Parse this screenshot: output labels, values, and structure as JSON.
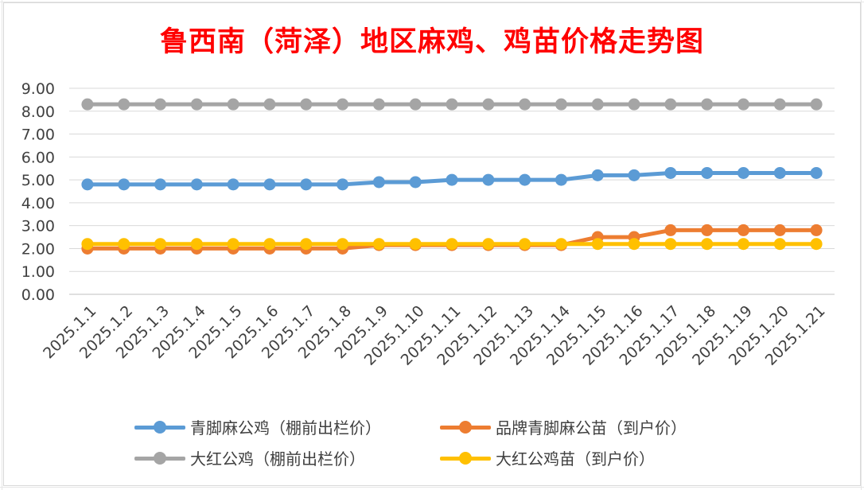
{
  "chart_data": {
    "type": "line",
    "title": "鲁西南（菏泽）地区麻鸡、鸡苗价格走势图",
    "categories": [
      "2025.1.1",
      "2025.1.2",
      "2025.1.3",
      "2025.1.4",
      "2025.1.5",
      "2025.1.6",
      "2025.1.7",
      "2025.1.8",
      "2025.1.9",
      "2025.1.10",
      "2025.1.11",
      "2025.1.12",
      "2025.1.13",
      "2025.1.14",
      "2025.1.15",
      "2025.1.16",
      "2025.1.17",
      "2025.1.18",
      "2025.1.19",
      "2025.1.20",
      "2025.1.21"
    ],
    "ylim": [
      0,
      9
    ],
    "yticks": [
      "0.00",
      "1.00",
      "2.00",
      "3.00",
      "4.00",
      "5.00",
      "6.00",
      "7.00",
      "8.00",
      "9.00"
    ],
    "grid": true,
    "legend_position": "bottom",
    "series": [
      {
        "name": "大红公鸡（棚前出栏价）",
        "color": "#a5a5a5",
        "values": [
          8.3,
          8.3,
          8.3,
          8.3,
          8.3,
          8.3,
          8.3,
          8.3,
          8.3,
          8.3,
          8.3,
          8.3,
          8.3,
          8.3,
          8.3,
          8.3,
          8.3,
          8.3,
          8.3,
          8.3,
          8.3
        ]
      },
      {
        "name": "青脚麻公鸡（棚前出栏价）",
        "color": "#5b9bd5",
        "values": [
          4.8,
          4.8,
          4.8,
          4.8,
          4.8,
          4.8,
          4.8,
          4.8,
          4.9,
          4.9,
          5.0,
          5.0,
          5.0,
          5.0,
          5.2,
          5.2,
          5.3,
          5.3,
          5.3,
          5.3,
          5.3
        ]
      },
      {
        "name": "品牌青脚麻公苗（到户价）",
        "color": "#ed7d31",
        "values": [
          2.0,
          2.0,
          2.0,
          2.0,
          2.0,
          2.0,
          2.0,
          2.0,
          2.15,
          2.15,
          2.15,
          2.15,
          2.15,
          2.15,
          2.5,
          2.5,
          2.8,
          2.8,
          2.8,
          2.8,
          2.8
        ]
      },
      {
        "name": "大红公鸡苗（到户价）",
        "color": "#ffc000",
        "values": [
          2.2,
          2.2,
          2.2,
          2.2,
          2.2,
          2.2,
          2.2,
          2.2,
          2.2,
          2.2,
          2.2,
          2.2,
          2.2,
          2.2,
          2.2,
          2.2,
          2.2,
          2.2,
          2.2,
          2.2,
          2.2
        ]
      }
    ]
  },
  "legend": [
    {
      "label": "青脚麻公鸡（棚前出栏价）",
      "color": "#5b9bd5"
    },
    {
      "label": "品牌青脚麻公苗（到户价）",
      "color": "#ed7d31"
    },
    {
      "label": "大红公鸡（棚前出栏价）",
      "color": "#a5a5a5"
    },
    {
      "label": "大红公鸡苗（到户价）",
      "color": "#ffc000"
    }
  ]
}
